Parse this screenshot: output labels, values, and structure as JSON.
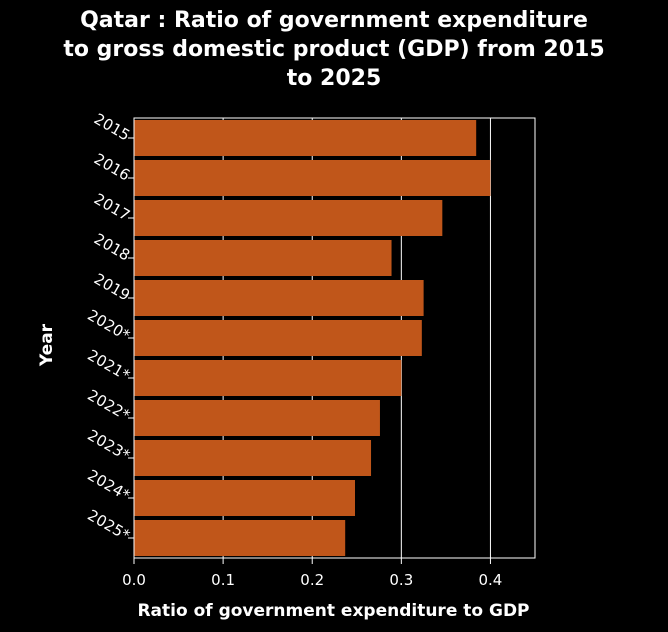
{
  "chart_data": {
    "type": "bar",
    "orientation": "horizontal",
    "title": "Qatar : Ratio of government expenditure to gross domestic product (GDP) from 2015 to 2025",
    "title_lines": [
      "Qatar : Ratio of government expenditure",
      "to gross domestic product (GDP) from 2015",
      "to 2025"
    ],
    "xlabel": "Ratio of government expenditure to GDP",
    "ylabel": "Year",
    "categories": [
      "2015",
      "2016",
      "2017",
      "2018",
      "2019",
      "2020*",
      "2021*",
      "2022*",
      "2023*",
      "2024*",
      "2025*"
    ],
    "values": [
      0.384,
      0.4,
      0.346,
      0.289,
      0.325,
      0.323,
      0.3,
      0.276,
      0.266,
      0.248,
      0.237
    ],
    "xlim": [
      0,
      0.45
    ],
    "xticks": [
      0.0,
      0.1,
      0.2,
      0.3,
      0.4
    ],
    "xtick_labels": [
      "0.0",
      "0.1",
      "0.2",
      "0.3",
      "0.4"
    ],
    "grid": "vertical",
    "colors": {
      "bar": "#c0561a",
      "background": "#000000",
      "text": "#ffffff",
      "grid": "#ffffff"
    }
  }
}
